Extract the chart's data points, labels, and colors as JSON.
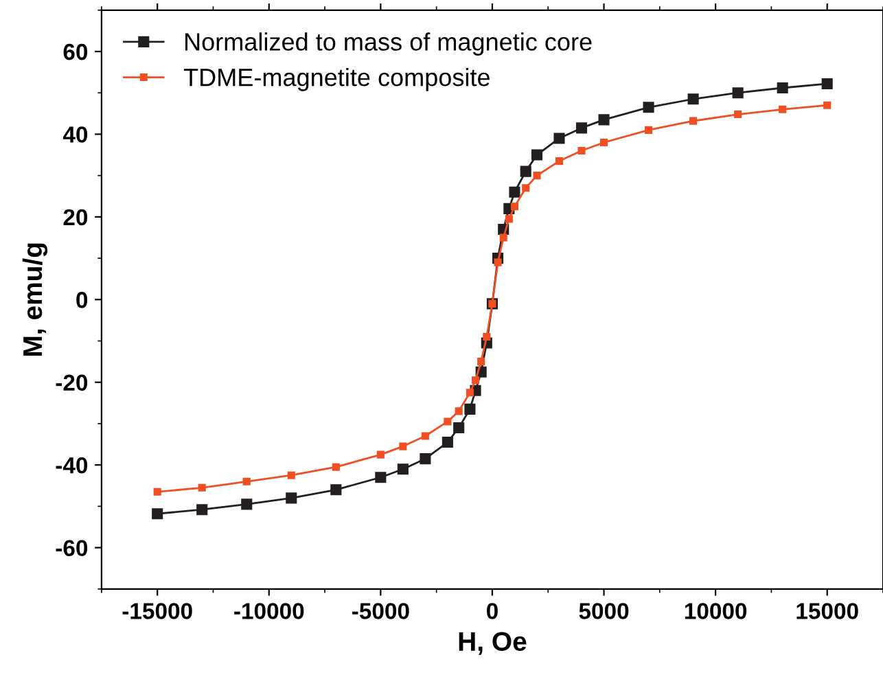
{
  "chart_data": {
    "type": "line",
    "xlabel": "H, Oe",
    "ylabel": "M, emu/g",
    "x": [
      -15000,
      -13000,
      -11000,
      -9000,
      -7000,
      -5000,
      -4000,
      -3000,
      -2000,
      -1500,
      -1000,
      -750,
      -500,
      -250,
      0,
      250,
      500,
      750,
      1000,
      1500,
      2000,
      3000,
      4000,
      5000,
      7000,
      9000,
      11000,
      13000,
      15000
    ],
    "series": [
      {
        "name": "Normalized to mass of magnetic core",
        "color": "#231f20",
        "values": [
          -51.8,
          -50.8,
          -49.5,
          -48,
          -46,
          -43,
          -41,
          -38.5,
          -34.5,
          -31,
          -26.5,
          -22,
          -17.5,
          -10.5,
          -1,
          10,
          17,
          22,
          26,
          31,
          35,
          39,
          41.5,
          43.5,
          46.5,
          48.5,
          50,
          51.2,
          52.2
        ]
      },
      {
        "name": "TDME-magnetite composite",
        "color": "#f04e23",
        "values": [
          -46.5,
          -45.5,
          -44,
          -42.5,
          -40.5,
          -37.5,
          -35.5,
          -33,
          -29.5,
          -27,
          -22.5,
          -19.5,
          -15,
          -9,
          -1,
          9,
          15,
          19.5,
          22.5,
          27,
          30,
          33.5,
          36,
          38,
          41,
          43.2,
          44.8,
          46,
          47
        ]
      }
    ],
    "xlim": [
      -17500,
      17500
    ],
    "ylim": [
      -70,
      70
    ],
    "xticks": [
      -15000,
      -10000,
      -5000,
      0,
      5000,
      10000,
      15000
    ],
    "yticks": [
      -60,
      -40,
      -20,
      0,
      20,
      40,
      60
    ],
    "marker": "square",
    "line_style": "solid",
    "legend": "top left",
    "grid": false
  }
}
